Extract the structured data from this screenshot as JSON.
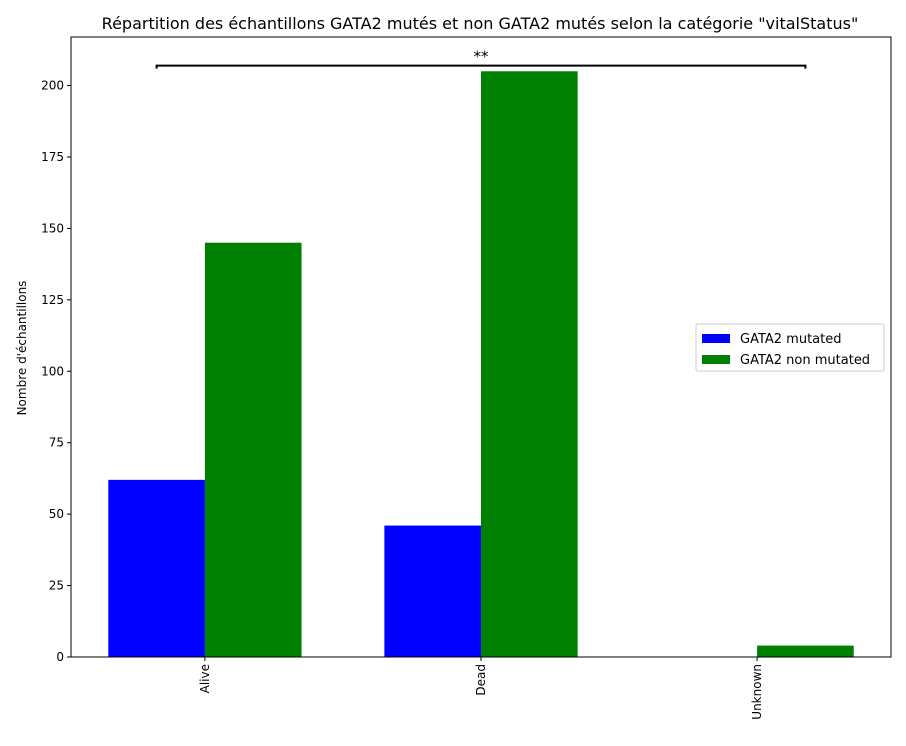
{
  "chart_data": {
    "type": "bar",
    "title": "Répartition des échantillons GATA2 mutés et non GATA2 mutés selon la catégorie \"vitalStatus\"",
    "xlabel": "",
    "ylabel": "Nombre d'échantillons",
    "categories": [
      "Alive",
      "Dead",
      "Unknown"
    ],
    "series": [
      {
        "name": "GATA2 mutated",
        "color": "#0000ff",
        "values": [
          62,
          46,
          0
        ]
      },
      {
        "name": "GATA2 non mutated",
        "color": "#008000",
        "values": [
          145,
          205,
          4
        ]
      }
    ],
    "ylim": [
      0,
      217
    ],
    "yticks": [
      0,
      25,
      50,
      75,
      100,
      125,
      150,
      175,
      200
    ],
    "grid": false,
    "legend": "center-right",
    "annotation": {
      "text": "**",
      "from_category": "Alive",
      "to_category": "Unknown",
      "y": 207
    }
  }
}
